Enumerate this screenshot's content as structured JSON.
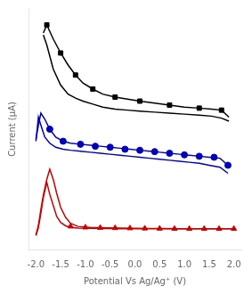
{
  "chart_data": {
    "type": "line",
    "xlabel": "Potential Vs Ag/Ag⁺ (V)",
    "ylabel": "Current (μA)",
    "xlim": [
      -2.15,
      2.15
    ],
    "xticks": [
      {
        "value": -2,
        "label": "-2.0"
      },
      -1.5,
      {
        "value": -1,
        "label": "-1.0"
      },
      -0.5,
      {
        "value": 0,
        "label": "0.0"
      },
      0.5,
      {
        "value": 1,
        "label": "1.0"
      },
      1.5,
      {
        "value": 2,
        "label": "2.0"
      }
    ],
    "ylim": [
      -2,
      10
    ],
    "tick_labels": "x",
    "grid": false,
    "series": [
      {
        "type": "line",
        "color": "#000000",
        "line_style": "solid",
        "marker": "none",
        "x": [
          -1.85,
          -1.78,
          -1.65,
          -1.5,
          -1.35,
          -1.2,
          -1.05,
          -0.85,
          -0.65,
          -0.4,
          -0.15,
          0.1,
          0.4,
          0.7,
          1.0,
          1.3,
          1.55,
          1.75,
          1.9
        ],
        "values": [
          8.8,
          9.2,
          8.5,
          7.8,
          7.2,
          6.7,
          6.3,
          6.0,
          5.75,
          5.6,
          5.5,
          5.4,
          5.3,
          5.2,
          5.1,
          5.05,
          5.0,
          4.95,
          4.6
        ]
      },
      {
        "type": "line",
        "color": "#000000",
        "line_style": "solid",
        "marker": "none",
        "x": [
          1.9,
          1.75,
          1.55,
          1.3,
          1.0,
          0.7,
          0.4,
          0.1,
          -0.15,
          -0.4,
          -0.65,
          -0.85,
          -1.05,
          -1.2,
          -1.35,
          -1.5,
          -1.65,
          -1.78,
          -1.85
        ],
        "values": [
          4.4,
          4.55,
          4.65,
          4.7,
          4.75,
          4.8,
          4.85,
          4.9,
          4.95,
          5.0,
          5.1,
          5.25,
          5.4,
          5.55,
          5.75,
          6.2,
          7.0,
          8.2,
          8.7
        ]
      },
      {
        "type": "scatter",
        "color": "#000000",
        "marker": "square",
        "x": [
          -1.78,
          -1.5,
          -1.2,
          -0.85,
          -0.4,
          0.1,
          0.7,
          1.3,
          1.75
        ],
        "values": [
          9.2,
          7.8,
          6.7,
          6.0,
          5.6,
          5.4,
          5.2,
          5.05,
          4.95
        ]
      },
      {
        "type": "line",
        "color": "#0000bb",
        "line_style": "solid",
        "marker": "none",
        "x": [
          -2.0,
          -1.95,
          -1.9,
          -1.82,
          -1.72,
          -1.6,
          -1.45,
          -1.3,
          -1.1,
          -0.9,
          -0.7,
          -0.5,
          -0.3,
          -0.1,
          0.1,
          0.3,
          0.5,
          0.7,
          0.9,
          1.1,
          1.3,
          1.5,
          1.72,
          1.88
        ],
        "values": [
          3.5,
          4.2,
          4.8,
          4.5,
          4.0,
          3.6,
          3.4,
          3.3,
          3.25,
          3.2,
          3.15,
          3.1,
          3.05,
          3.0,
          2.95,
          2.9,
          2.85,
          2.8,
          2.75,
          2.7,
          2.65,
          2.6,
          2.55,
          2.2
        ]
      },
      {
        "type": "line",
        "color": "#0000bb",
        "line_style": "solid",
        "marker": "none",
        "x": [
          1.88,
          1.72,
          1.5,
          1.3,
          1.1,
          0.9,
          0.7,
          0.5,
          0.3,
          0.1,
          -0.1,
          -0.3,
          -0.5,
          -0.7,
          -0.9,
          -1.1,
          -1.3,
          -1.45,
          -1.6,
          -1.72,
          -1.82,
          -1.9,
          -1.95,
          -2.0
        ],
        "values": [
          1.8,
          2.1,
          2.2,
          2.3,
          2.35,
          2.4,
          2.45,
          2.5,
          2.55,
          2.6,
          2.65,
          2.7,
          2.75,
          2.8,
          2.85,
          2.9,
          2.95,
          3.0,
          3.1,
          3.3,
          3.6,
          4.2,
          4.6,
          3.4
        ]
      },
      {
        "type": "scatter",
        "color": "#0000bb",
        "marker": "circle",
        "x": [
          -1.72,
          -1.45,
          -1.1,
          -0.8,
          -0.5,
          -0.2,
          0.1,
          0.4,
          0.7,
          1.0,
          1.3,
          1.6,
          1.88
        ],
        "values": [
          4.0,
          3.4,
          3.25,
          3.15,
          3.1,
          3.0,
          2.95,
          2.88,
          2.8,
          2.72,
          2.65,
          2.6,
          2.2
        ]
      },
      {
        "type": "line",
        "color": "#cc0000",
        "line_style": "solid",
        "marker": "none",
        "x": [
          -2.0,
          -1.95,
          -1.9,
          -1.85,
          -1.78,
          -1.72,
          -1.65,
          -1.58,
          -1.5,
          -1.4,
          -1.3,
          -1.15,
          -0.9,
          -0.6,
          -0.3,
          0.0,
          0.3,
          0.6,
          0.9,
          1.2,
          1.5,
          1.8,
          2.0
        ],
        "values": [
          -1.3,
          -0.8,
          0.0,
          0.7,
          1.5,
          2.0,
          1.5,
          0.8,
          0.1,
          -0.4,
          -0.7,
          -0.85,
          -0.9,
          -0.92,
          -0.93,
          -0.94,
          -0.95,
          -0.96,
          -0.97,
          -0.97,
          -0.97,
          -0.97,
          -0.97
        ]
      },
      {
        "type": "line",
        "color": "#cc0000",
        "line_style": "solid",
        "marker": "none",
        "x": [
          2.0,
          1.8,
          1.5,
          1.2,
          0.9,
          0.6,
          0.3,
          0.0,
          -0.3,
          -0.6,
          -0.9,
          -1.15,
          -1.3,
          -1.4,
          -1.5,
          -1.58,
          -1.65,
          -1.72,
          -1.78,
          -1.85,
          -1.9,
          -1.95,
          -2.0
        ],
        "values": [
          -0.97,
          -0.97,
          -0.97,
          -0.97,
          -0.97,
          -0.97,
          -0.97,
          -0.97,
          -0.97,
          -0.96,
          -0.95,
          -0.93,
          -0.9,
          -0.82,
          -0.65,
          -0.35,
          0.2,
          0.75,
          1.35,
          0.6,
          -0.2,
          -0.9,
          -1.3
        ]
      },
      {
        "type": "scatter",
        "color": "#cc0000",
        "marker": "triangle",
        "x": [
          -1.3,
          -1.0,
          -0.7,
          -0.4,
          -0.1,
          0.2,
          0.5,
          0.8,
          1.1,
          1.4,
          1.7,
          2.0
        ],
        "values": [
          -0.85,
          -0.9,
          -0.92,
          -0.93,
          -0.94,
          -0.95,
          -0.96,
          -0.97,
          -0.97,
          -0.97,
          -0.97,
          -0.97
        ]
      }
    ]
  }
}
